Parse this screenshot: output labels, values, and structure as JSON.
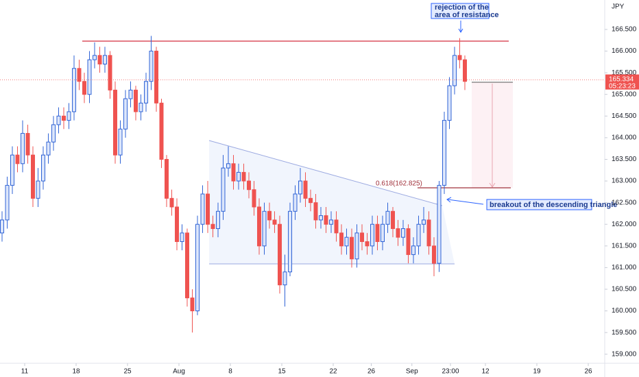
{
  "chart_data": {
    "type": "candlestick",
    "currency": "JPY",
    "last_price": 165.334,
    "countdown": "05:23:23",
    "fib_label": "0.618(162.825)",
    "annotations": [
      "rejection of the area of resistance",
      "breakout of the descending triangle"
    ],
    "up_color": "#2f63d6",
    "down_color": "#ef5350",
    "xlim": [
      -0.4,
      117.2
    ],
    "ylim": [
      158.79,
      167.18
    ],
    "xticks": [
      {
        "value": 4.4,
        "label": "11"
      },
      {
        "value": 14.4,
        "label": "18"
      },
      {
        "value": 24.4,
        "label": "25"
      },
      {
        "value": 34.4,
        "label": "Aug"
      },
      {
        "value": 44.4,
        "label": "8"
      },
      {
        "value": 54.4,
        "label": "15"
      },
      {
        "value": 64.4,
        "label": "22"
      },
      {
        "value": 71.8,
        "label": "26"
      },
      {
        "value": 79.7,
        "label": "Sep"
      },
      {
        "value": 87.2,
        "label": "23:00"
      },
      {
        "value": 94,
        "label": "12"
      },
      {
        "value": 104,
        "label": "19"
      },
      {
        "value": 114,
        "label": "26"
      }
    ],
    "yticks": [
      {
        "value": 166.5,
        "label": "166.500"
      },
      {
        "value": 166,
        "label": "166.000"
      },
      {
        "value": 165.5,
        "label": "165.500"
      },
      {
        "value": 165,
        "label": "165.000"
      },
      {
        "value": 164.5,
        "label": "164.500"
      },
      {
        "value": 164,
        "label": "164.000"
      },
      {
        "value": 163.5,
        "label": "163.500"
      },
      {
        "value": 163,
        "label": "163.000"
      },
      {
        "value": 162.5,
        "label": "162.500"
      },
      {
        "value": 162,
        "label": "162.000"
      },
      {
        "value": 161.5,
        "label": "161.500"
      },
      {
        "value": 161,
        "label": "161.000"
      },
      {
        "value": 160.5,
        "label": "160.500"
      },
      {
        "value": 160,
        "label": "160.000"
      },
      {
        "value": 159.5,
        "label": "159.500"
      },
      {
        "value": 159,
        "label": "159.000"
      }
    ],
    "open": [
      161.8,
      162.1,
      162.9,
      163.6,
      163.4,
      164.1,
      163.6,
      162.6,
      163.0,
      163.6,
      163.9,
      164.3,
      164.5,
      164.4,
      164.6,
      165.6,
      165.3,
      165.0,
      165.8,
      165.9,
      165.7,
      165.9,
      165.1,
      163.6,
      164.2,
      164.9,
      165.1,
      164.6,
      164.8,
      165.3,
      166.0,
      164.8,
      163.5,
      162.6,
      162.4,
      161.6,
      161.8,
      160.3,
      160.0,
      162.0,
      162.7,
      162.0,
      161.9,
      162.3,
      163.3,
      163.4,
      163.0,
      163.2,
      163.0,
      162.8,
      162.4,
      161.5,
      162.3,
      162.1,
      162.0,
      160.6,
      160.9,
      162.3,
      162.7,
      163.0,
      162.6,
      162.5,
      162.1,
      162.2,
      162.0,
      162.1,
      161.8,
      161.5,
      161.7,
      161.2,
      161.8,
      161.6,
      161.5,
      162.0,
      161.6,
      162.0,
      162.3,
      161.9,
      161.7,
      161.9,
      161.3,
      161.5,
      162.0,
      162.1,
      161.5,
      161.1,
      162.9,
      164.4,
      165.2,
      165.9,
      165.8
    ],
    "high": [
      162.3,
      163.1,
      163.8,
      163.8,
      164.4,
      164.3,
      163.8,
      163.3,
      163.8,
      164.1,
      164.5,
      164.7,
      164.7,
      164.8,
      165.9,
      165.8,
      165.5,
      166.0,
      166.2,
      166.1,
      166.1,
      166.0,
      165.3,
      164.4,
      165.1,
      165.3,
      165.2,
      165.0,
      165.5,
      166.35,
      166.1,
      164.9,
      163.6,
      162.8,
      162.6,
      162.0,
      161.9,
      160.5,
      162.2,
      162.9,
      163.0,
      162.2,
      162.5,
      163.6,
      163.8,
      163.6,
      163.4,
      163.4,
      163.2,
      163.0,
      162.6,
      162.5,
      162.5,
      162.3,
      162.2,
      161.3,
      162.5,
      162.9,
      163.3,
      163.2,
      162.8,
      162.7,
      162.4,
      162.4,
      162.3,
      162.3,
      162.0,
      161.9,
      161.9,
      162.0,
      162.0,
      161.8,
      162.2,
      162.2,
      162.2,
      162.5,
      162.4,
      162.1,
      162.1,
      162.0,
      161.7,
      162.2,
      162.4,
      162.3,
      161.7,
      163.0,
      164.6,
      165.4,
      166.1,
      166.3,
      165.9
    ],
    "low": [
      161.6,
      161.9,
      162.7,
      163.2,
      163.2,
      163.4,
      162.4,
      162.4,
      162.8,
      163.4,
      163.7,
      164.1,
      164.2,
      164.2,
      164.4,
      165.1,
      164.8,
      164.8,
      165.6,
      165.5,
      165.5,
      164.9,
      163.4,
      163.4,
      164.0,
      164.7,
      164.4,
      164.4,
      164.6,
      165.1,
      164.6,
      163.3,
      162.4,
      162.2,
      161.4,
      161.4,
      160.1,
      159.5,
      159.9,
      161.8,
      161.8,
      161.7,
      161.7,
      162.1,
      163.1,
      162.8,
      162.8,
      162.8,
      162.6,
      162.2,
      161.3,
      161.3,
      161.9,
      161.8,
      160.4,
      160.1,
      160.8,
      162.1,
      162.5,
      162.4,
      162.3,
      161.9,
      161.9,
      161.8,
      161.8,
      161.6,
      161.3,
      161.3,
      161.0,
      161.0,
      161.4,
      161.3,
      161.3,
      161.4,
      161.4,
      161.8,
      161.7,
      161.5,
      161.5,
      161.1,
      161.1,
      161.3,
      161.8,
      161.3,
      160.8,
      160.9,
      162.7,
      164.2,
      165.0,
      165.6,
      165.1
    ],
    "close": [
      162.1,
      162.9,
      163.6,
      163.4,
      164.1,
      163.6,
      162.6,
      163.0,
      163.6,
      163.9,
      164.3,
      164.5,
      164.4,
      164.6,
      165.6,
      165.3,
      165.0,
      165.8,
      165.9,
      165.7,
      165.9,
      165.1,
      163.6,
      164.2,
      164.9,
      165.1,
      164.6,
      164.8,
      165.3,
      166.0,
      164.8,
      163.5,
      162.6,
      162.4,
      161.6,
      161.8,
      160.3,
      160.0,
      162.0,
      162.7,
      162.0,
      161.9,
      162.3,
      163.3,
      163.4,
      163.0,
      163.2,
      163.0,
      162.8,
      162.4,
      161.5,
      162.3,
      162.1,
      162.0,
      160.6,
      160.9,
      162.3,
      162.7,
      163.0,
      162.6,
      162.5,
      162.1,
      162.2,
      162.0,
      162.1,
      161.8,
      161.5,
      161.7,
      161.2,
      161.8,
      161.6,
      161.5,
      162.0,
      161.6,
      162.0,
      162.3,
      161.9,
      161.7,
      161.9,
      161.3,
      161.5,
      162.0,
      162.1,
      161.5,
      161.1,
      162.9,
      164.4,
      165.2,
      165.9,
      165.8,
      165.3
    ]
  }
}
